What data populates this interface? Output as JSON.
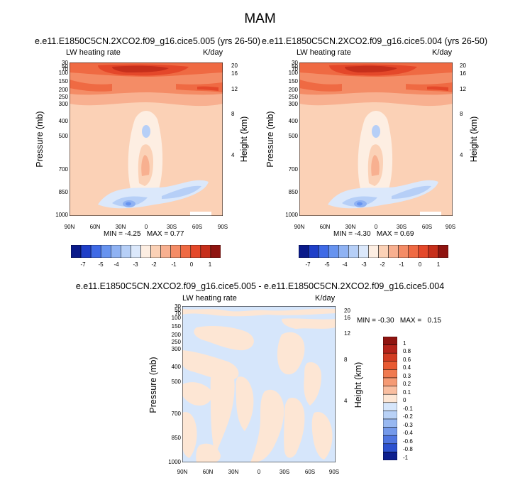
{
  "title": "MAM",
  "chart_data": [
    {
      "type": "heatmap",
      "title": "e.e11.E1850C5CN.2XCO2.f09_g16.cice5.005 (yrs 26-50)",
      "left_label": "LW heating rate",
      "right_label": "K/day",
      "ylabel": "Pressure (mb)",
      "y2label": "Height (km)",
      "x_ticks": [
        "90N",
        "60N",
        "30N",
        "0",
        "30S",
        "60S",
        "90S"
      ],
      "y_ticks": [
        "30",
        "50",
        "70",
        "100",
        "150",
        "200",
        "250",
        "300",
        "400",
        "500",
        "700",
        "850",
        "1000"
      ],
      "y2_ticks": [
        "20",
        "16",
        "12",
        "8",
        "4"
      ],
      "stats": {
        "min_label": "MIN =",
        "min": "-4.25",
        "max_label": "MAX =",
        "max": "0.77"
      },
      "colorbar_labels": [
        "-7",
        "-5",
        "-4",
        "-3",
        "-2",
        "-1",
        "0",
        "1"
      ]
    },
    {
      "type": "heatmap",
      "title": "e.e11.E1850C5CN.2XCO2.f09_g16.cice5.004 (yrs 26-50)",
      "left_label": "LW heating rate",
      "right_label": "K/day",
      "ylabel": "Pressure (mb)",
      "y2label": "Height (km)",
      "x_ticks": [
        "90N",
        "60N",
        "30N",
        "0",
        "30S",
        "60S",
        "90S"
      ],
      "y_ticks": [
        "30",
        "50",
        "70",
        "100",
        "150",
        "200",
        "250",
        "300",
        "400",
        "500",
        "700",
        "850",
        "1000"
      ],
      "y2_ticks": [
        "20",
        "16",
        "12",
        "8",
        "4"
      ],
      "stats": {
        "min_label": "MIN =",
        "min": "-4.30",
        "max_label": "MAX =",
        "max": "0.69"
      },
      "colorbar_labels": [
        "-7",
        "-5",
        "-4",
        "-3",
        "-2",
        "-1",
        "0",
        "1"
      ]
    },
    {
      "type": "heatmap",
      "title": "e.e11.E1850C5CN.2XCO2.f09_g16.cice5.005 - e.e11.E1850C5CN.2XCO2.f09_g16.cice5.004",
      "left_label": "LW heating rate",
      "right_label": "K/day",
      "ylabel": "Pressure (mb)",
      "y2label": "Height (km)",
      "x_ticks": [
        "90N",
        "60N",
        "30N",
        "0",
        "30S",
        "60S",
        "90S"
      ],
      "y_ticks": [
        "30",
        "50",
        "70",
        "100",
        "150",
        "200",
        "250",
        "300",
        "400",
        "500",
        "700",
        "850",
        "1000"
      ],
      "y2_ticks": [
        "20",
        "16",
        "12",
        "8",
        "4"
      ],
      "stats": {
        "min_label": "MIN =",
        "min": "-0.30",
        "max_label": "MAX =",
        "max": "0.15"
      },
      "colorbar_labels": [
        "1",
        "0.8",
        "0.6",
        "0.4",
        "0.3",
        "0.2",
        "0.1",
        "0",
        "-0.1",
        "-0.2",
        "-0.3",
        "-0.4",
        "-0.6",
        "-0.8",
        "-1"
      ]
    }
  ],
  "colors": {
    "abs_scale": [
      "#0a1a8a",
      "#1f3fc8",
      "#3f6ae6",
      "#6793ef",
      "#8fb2f3",
      "#b6cff7",
      "#dbe8fb",
      "#fdeee2",
      "#fbd1b6",
      "#f8b090",
      "#f48c66",
      "#ef6a43",
      "#e4482a",
      "#c62f1b",
      "#8f1410"
    ],
    "diff_scale": [
      "#8f1410",
      "#b4231a",
      "#d23c22",
      "#e85a32",
      "#f07a50",
      "#f59a74",
      "#f9bea0",
      "#fde6d4",
      "#d6e6fb",
      "#b8d1f6",
      "#98b8f1",
      "#7499ea",
      "#4f75e0",
      "#2c51cf",
      "#0d1f8e"
    ]
  }
}
